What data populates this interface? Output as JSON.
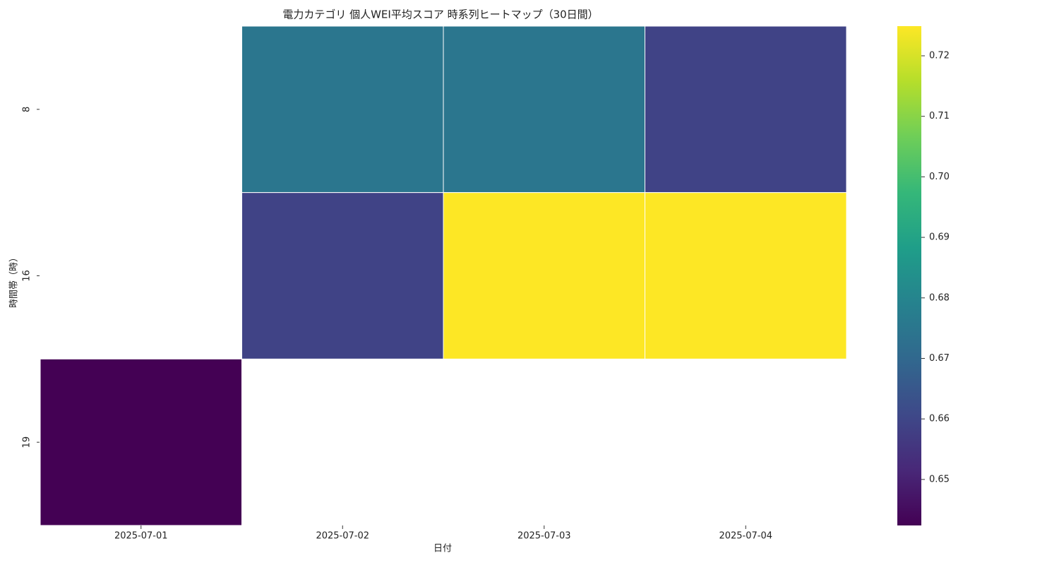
{
  "chart_data": {
    "type": "heatmap",
    "title": "電力カテゴリ 個人WEI平均スコア 時系列ヒートマップ（30日間）",
    "x_label": "日付",
    "y_label": "時間帯（時）",
    "categories": [
      "2025-07-01",
      "2025-07-02",
      "2025-07-03",
      "2025-07-04"
    ],
    "rows": [
      "8",
      "16",
      "19"
    ],
    "values": [
      [
        null,
        0.675,
        0.675,
        0.659
      ],
      [
        null,
        0.659,
        0.7249,
        0.7249
      ],
      [
        0.6424,
        null,
        null,
        null
      ]
    ],
    "colormap": "viridis",
    "clim": [
      0.6424,
      0.7249
    ],
    "cticks": [
      0.65,
      0.66,
      0.67,
      0.68,
      0.69,
      {
        "value": 0.7,
        "label": "0.70"
      },
      0.71,
      0.72
    ]
  }
}
